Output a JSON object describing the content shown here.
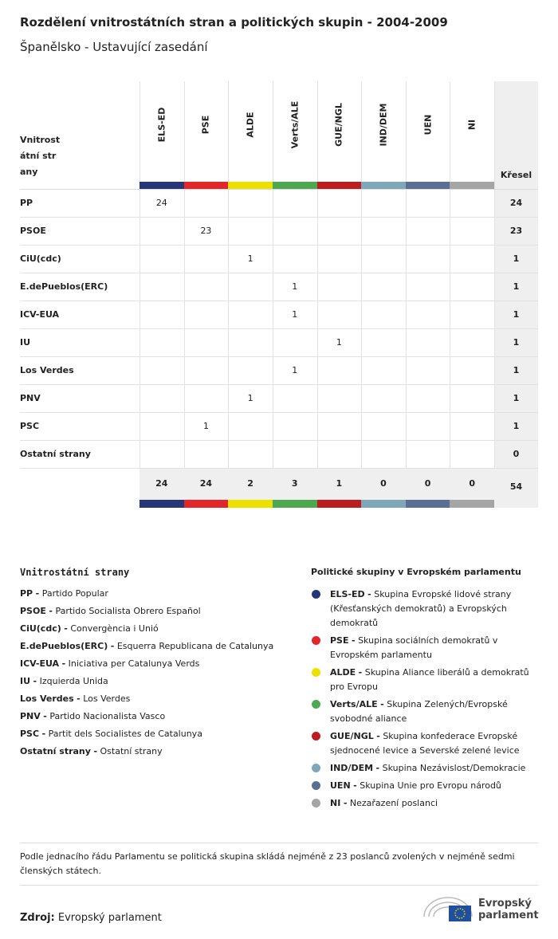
{
  "header": {
    "title": "Rozdělení vnitrostátních stran a politických skupin - 2004-2009",
    "subtitle": "Španělsko - Ustavující zasedání"
  },
  "table": {
    "row_header": "Vnitrostátní strany",
    "total_header": "Křesel",
    "columns": [
      {
        "label": "ELS-ED",
        "color": "#263679"
      },
      {
        "label": "PSE",
        "color": "#e3262a"
      },
      {
        "label": "ALDE",
        "color": "#ece000"
      },
      {
        "label": "Verts/ALE",
        "color": "#4ea850"
      },
      {
        "label": "GUE/NGL",
        "color": "#bb1d21"
      },
      {
        "label": "IND/DEM",
        "color": "#7fa7ba"
      },
      {
        "label": "UEN",
        "color": "#5b6f94"
      },
      {
        "label": "NI",
        "color": "#a5a5a5"
      }
    ],
    "rows": [
      {
        "party": "PP",
        "cells": [
          24,
          null,
          null,
          null,
          null,
          null,
          null,
          null
        ],
        "total": 24
      },
      {
        "party": "PSOE",
        "cells": [
          null,
          23,
          null,
          null,
          null,
          null,
          null,
          null
        ],
        "total": 23
      },
      {
        "party": "CiU(cdc)",
        "cells": [
          null,
          null,
          1,
          null,
          null,
          null,
          null,
          null
        ],
        "total": 1
      },
      {
        "party": "E.dePueblos(ERC)",
        "cells": [
          null,
          null,
          null,
          1,
          null,
          null,
          null,
          null
        ],
        "total": 1
      },
      {
        "party": "ICV-EUA",
        "cells": [
          null,
          null,
          null,
          1,
          null,
          null,
          null,
          null
        ],
        "total": 1
      },
      {
        "party": "IU",
        "cells": [
          null,
          null,
          null,
          null,
          1,
          null,
          null,
          null
        ],
        "total": 1
      },
      {
        "party": "Los Verdes",
        "cells": [
          null,
          null,
          null,
          1,
          null,
          null,
          null,
          null
        ],
        "total": 1
      },
      {
        "party": "PNV",
        "cells": [
          null,
          null,
          1,
          null,
          null,
          null,
          null,
          null
        ],
        "total": 1
      },
      {
        "party": "PSC",
        "cells": [
          null,
          1,
          null,
          null,
          null,
          null,
          null,
          null
        ],
        "total": 1
      },
      {
        "party": "Ostatní strany",
        "cells": [
          null,
          null,
          null,
          null,
          null,
          null,
          null,
          null
        ],
        "total": 0
      }
    ],
    "column_totals": [
      24,
      24,
      2,
      3,
      1,
      0,
      0,
      0
    ],
    "grand_total": 54
  },
  "party_legend": {
    "title": "Vnitrostátní strany",
    "separator": "-",
    "items": [
      {
        "abbr": "PP",
        "name": "Partido Popular"
      },
      {
        "abbr": "PSOE",
        "name": "Partido Socialista Obrero Español"
      },
      {
        "abbr": "CiU(cdc)",
        "name": "Convergència i Unió"
      },
      {
        "abbr": "E.dePueblos(ERC)",
        "name": "Esquerra Republicana de Catalunya"
      },
      {
        "abbr": "ICV-EUA",
        "name": "Iniciativa per Catalunya Verds"
      },
      {
        "abbr": "IU",
        "name": "Izquierda Unida"
      },
      {
        "abbr": "Los Verdes",
        "name": "Los Verdes"
      },
      {
        "abbr": "PNV",
        "name": "Partido Nacionalista Vasco"
      },
      {
        "abbr": "PSC",
        "name": "Partit dels Socialistes de Catalunya"
      },
      {
        "abbr": "Ostatní strany",
        "name": "Ostatní strany"
      }
    ]
  },
  "group_legend": {
    "title": "Politické skupiny v Evropském parlamentu",
    "names": [
      "Skupina Evropské lidové strany (Křesťanských demokratů) a Evropských demokratů",
      "Skupina sociálních demokratů v Evropském parlamentu",
      "Skupina Aliance liberálů a demokratů pro Evropu",
      "Skupina Zelených/Evropské svobodné aliance",
      "Skupina konfederace Evropské sjednocené levice a Severské zelené levice",
      "Skupina Nezávislost/Demokracie",
      "Skupina Unie pro Evropu národů",
      "Nezařazení poslanci"
    ]
  },
  "footnote": "Podle jednacího řádu Parlamentu se politická skupina skládá nejméně z 23 poslanců zvolených v nejméně sedmi členských státech.",
  "source": {
    "label": "Zdroj:",
    "text": "Evropský parlament"
  },
  "logo": {
    "line1": "Evropský",
    "line2": "parlament"
  }
}
